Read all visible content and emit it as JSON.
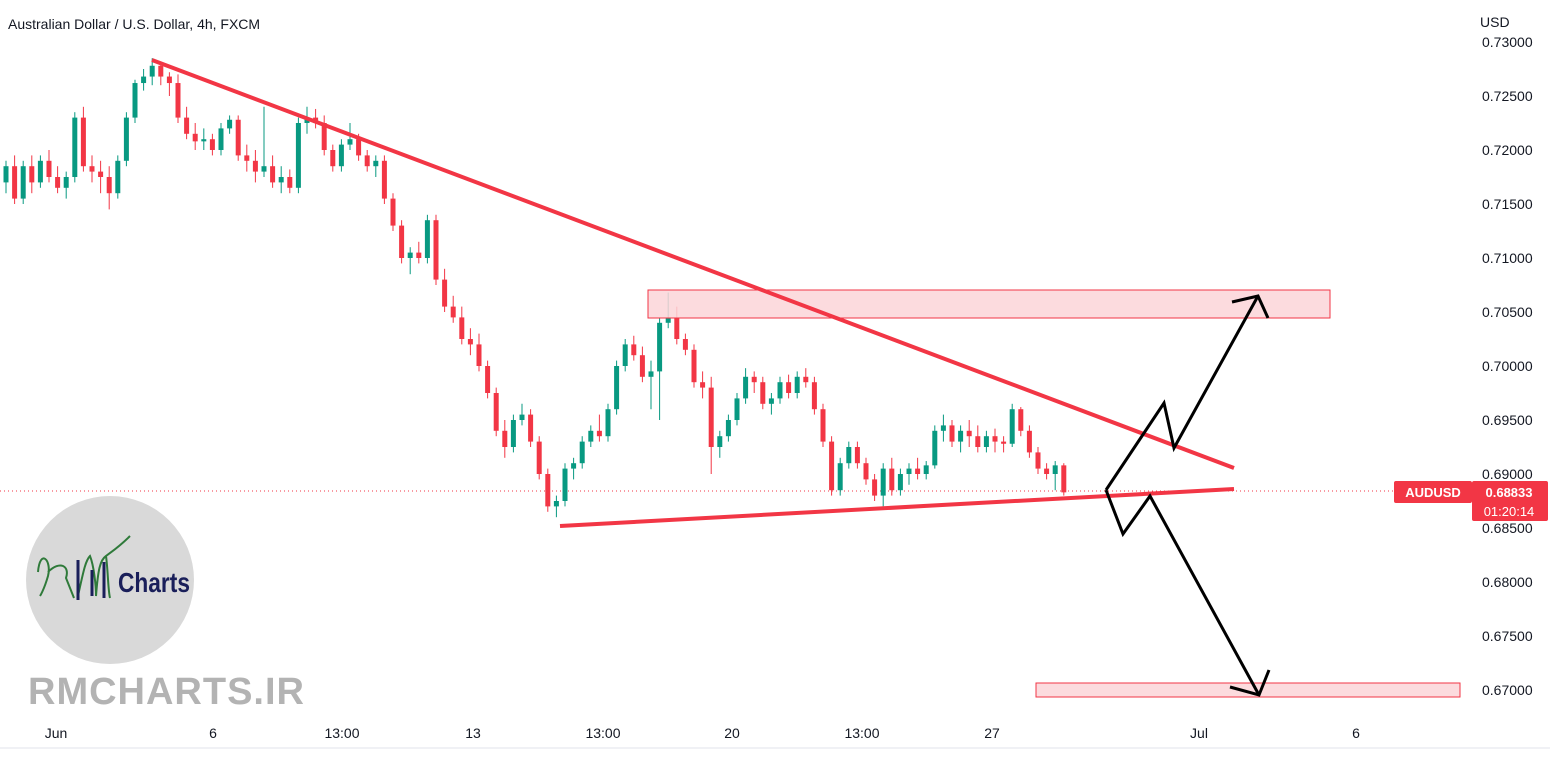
{
  "header": {
    "title": "Australian Dollar / U.S. Dollar, 4h, FXCM"
  },
  "price_axis": {
    "currency": "USD",
    "ticks": [
      "0.73000",
      "0.72500",
      "0.72000",
      "0.71500",
      "0.71000",
      "0.70500",
      "0.70000",
      "0.69500",
      "0.69000",
      "0.68500",
      "0.68000",
      "0.67500",
      "0.67000"
    ]
  },
  "time_axis": {
    "labels": [
      "Jun",
      "6",
      "13:00",
      "13",
      "13:00",
      "20",
      "13:00",
      "27",
      "Jul",
      "6"
    ]
  },
  "price_tag": {
    "symbol": "AUDUSD",
    "price": "0.68833",
    "countdown": "01:20:14",
    "color": "#f23645"
  },
  "watermark": {
    "logo_text": "Charts",
    "site": "RMCHARTS.IR"
  },
  "colors": {
    "up": "#089981",
    "down": "#f23645",
    "trendline": "#f23645",
    "zone_fill": "#fcd5d8",
    "zone_stroke": "#f23645",
    "arrows": "#000000"
  },
  "chart_data": {
    "type": "candlestick",
    "title": "Australian Dollar / U.S. Dollar, 4h, FXCM",
    "symbol": "AUDUSD",
    "timeframe": "4h",
    "ylabel": "USD",
    "ylim": [
      0.6695,
      0.7305
    ],
    "last_price": 0.68833,
    "candles": [
      [
        0.717,
        0.719,
        0.716,
        0.7185
      ],
      [
        0.7185,
        0.7195,
        0.715,
        0.7155
      ],
      [
        0.7155,
        0.719,
        0.715,
        0.7185
      ],
      [
        0.7185,
        0.7195,
        0.716,
        0.717
      ],
      [
        0.717,
        0.7195,
        0.7165,
        0.719
      ],
      [
        0.719,
        0.72,
        0.717,
        0.7175
      ],
      [
        0.7175,
        0.7185,
        0.716,
        0.7165
      ],
      [
        0.7165,
        0.718,
        0.7155,
        0.7175
      ],
      [
        0.7175,
        0.7235,
        0.717,
        0.723
      ],
      [
        0.723,
        0.724,
        0.718,
        0.7185
      ],
      [
        0.7185,
        0.7195,
        0.717,
        0.718
      ],
      [
        0.718,
        0.719,
        0.716,
        0.7175
      ],
      [
        0.7175,
        0.7185,
        0.7145,
        0.716
      ],
      [
        0.716,
        0.7195,
        0.7155,
        0.719
      ],
      [
        0.719,
        0.7235,
        0.7185,
        0.723
      ],
      [
        0.723,
        0.7265,
        0.7225,
        0.7262
      ],
      [
        0.7262,
        0.7275,
        0.7255,
        0.7268
      ],
      [
        0.7268,
        0.7285,
        0.726,
        0.7278
      ],
      [
        0.7278,
        0.7282,
        0.726,
        0.7268
      ],
      [
        0.7268,
        0.7272,
        0.725,
        0.7262
      ],
      [
        0.7262,
        0.727,
        0.7225,
        0.723
      ],
      [
        0.723,
        0.724,
        0.721,
        0.7215
      ],
      [
        0.7215,
        0.7225,
        0.72,
        0.7208
      ],
      [
        0.7208,
        0.722,
        0.72,
        0.721
      ],
      [
        0.721,
        0.7215,
        0.7195,
        0.72
      ],
      [
        0.72,
        0.7225,
        0.7195,
        0.722
      ],
      [
        0.722,
        0.7232,
        0.7215,
        0.7228
      ],
      [
        0.7228,
        0.7232,
        0.719,
        0.7195
      ],
      [
        0.7195,
        0.7205,
        0.718,
        0.719
      ],
      [
        0.719,
        0.72,
        0.717,
        0.718
      ],
      [
        0.718,
        0.724,
        0.7175,
        0.7185
      ],
      [
        0.7185,
        0.7195,
        0.7165,
        0.717
      ],
      [
        0.717,
        0.7185,
        0.716,
        0.7175
      ],
      [
        0.7175,
        0.7182,
        0.716,
        0.7165
      ],
      [
        0.7165,
        0.723,
        0.716,
        0.7225
      ],
      [
        0.7225,
        0.724,
        0.7215,
        0.723
      ],
      [
        0.723,
        0.7238,
        0.722,
        0.7225
      ],
      [
        0.7225,
        0.7232,
        0.7195,
        0.72
      ],
      [
        0.72,
        0.7205,
        0.718,
        0.7185
      ],
      [
        0.7185,
        0.721,
        0.718,
        0.7205
      ],
      [
        0.7205,
        0.7225,
        0.72,
        0.721
      ],
      [
        0.721,
        0.7215,
        0.719,
        0.7195
      ],
      [
        0.7195,
        0.72,
        0.718,
        0.7185
      ],
      [
        0.7185,
        0.7195,
        0.7175,
        0.719
      ],
      [
        0.719,
        0.7195,
        0.715,
        0.7155
      ],
      [
        0.7155,
        0.716,
        0.7125,
        0.713
      ],
      [
        0.713,
        0.7135,
        0.7095,
        0.71
      ],
      [
        0.71,
        0.711,
        0.7085,
        0.7105
      ],
      [
        0.7105,
        0.7115,
        0.7095,
        0.71
      ],
      [
        0.71,
        0.714,
        0.7095,
        0.7135
      ],
      [
        0.7135,
        0.714,
        0.7075,
        0.708
      ],
      [
        0.708,
        0.709,
        0.705,
        0.7055
      ],
      [
        0.7055,
        0.7065,
        0.704,
        0.7045
      ],
      [
        0.7045,
        0.7055,
        0.702,
        0.7025
      ],
      [
        0.7025,
        0.7035,
        0.701,
        0.702
      ],
      [
        0.702,
        0.703,
        0.6995,
        0.7
      ],
      [
        0.7,
        0.7005,
        0.697,
        0.6975
      ],
      [
        0.6975,
        0.698,
        0.6935,
        0.694
      ],
      [
        0.694,
        0.695,
        0.6915,
        0.6925
      ],
      [
        0.6925,
        0.6955,
        0.692,
        0.695
      ],
      [
        0.695,
        0.6965,
        0.6945,
        0.6955
      ],
      [
        0.6955,
        0.696,
        0.6925,
        0.693
      ],
      [
        0.693,
        0.6935,
        0.6895,
        0.69
      ],
      [
        0.69,
        0.6905,
        0.6865,
        0.687
      ],
      [
        0.687,
        0.688,
        0.686,
        0.6875
      ],
      [
        0.6875,
        0.691,
        0.687,
        0.6905
      ],
      [
        0.6905,
        0.6915,
        0.6895,
        0.691
      ],
      [
        0.691,
        0.6935,
        0.6905,
        0.693
      ],
      [
        0.693,
        0.6945,
        0.6925,
        0.694
      ],
      [
        0.694,
        0.6955,
        0.693,
        0.6935
      ],
      [
        0.6935,
        0.6965,
        0.693,
        0.696
      ],
      [
        0.696,
        0.7005,
        0.6955,
        0.7
      ],
      [
        0.7,
        0.7025,
        0.6995,
        0.702
      ],
      [
        0.702,
        0.7028,
        0.7005,
        0.701
      ],
      [
        0.701,
        0.7018,
        0.6985,
        0.699
      ],
      [
        0.699,
        0.7005,
        0.696,
        0.6995
      ],
      [
        0.6995,
        0.7045,
        0.695,
        0.704
      ],
      [
        0.704,
        0.7068,
        0.7035,
        0.7045
      ],
      [
        0.7045,
        0.7055,
        0.702,
        0.7025
      ],
      [
        0.7025,
        0.703,
        0.701,
        0.7015
      ],
      [
        0.7015,
        0.702,
        0.698,
        0.6985
      ],
      [
        0.6985,
        0.6995,
        0.697,
        0.698
      ],
      [
        0.698,
        0.699,
        0.69,
        0.6925
      ],
      [
        0.6925,
        0.694,
        0.6915,
        0.6935
      ],
      [
        0.6935,
        0.6955,
        0.693,
        0.695
      ],
      [
        0.695,
        0.6975,
        0.6945,
        0.697
      ],
      [
        0.697,
        0.6998,
        0.6965,
        0.699
      ],
      [
        0.699,
        0.6995,
        0.6975,
        0.6985
      ],
      [
        0.6985,
        0.699,
        0.696,
        0.6965
      ],
      [
        0.6965,
        0.6975,
        0.6955,
        0.697
      ],
      [
        0.697,
        0.699,
        0.6965,
        0.6985
      ],
      [
        0.6985,
        0.6992,
        0.697,
        0.6975
      ],
      [
        0.6975,
        0.6995,
        0.697,
        0.699
      ],
      [
        0.699,
        0.6998,
        0.698,
        0.6985
      ],
      [
        0.6985,
        0.699,
        0.6955,
        0.696
      ],
      [
        0.696,
        0.6965,
        0.6925,
        0.693
      ],
      [
        0.693,
        0.6935,
        0.688,
        0.6885
      ],
      [
        0.6885,
        0.6915,
        0.688,
        0.691
      ],
      [
        0.691,
        0.693,
        0.6905,
        0.6925
      ],
      [
        0.6925,
        0.693,
        0.6905,
        0.691
      ],
      [
        0.691,
        0.6915,
        0.689,
        0.6895
      ],
      [
        0.6895,
        0.69,
        0.6875,
        0.688
      ],
      [
        0.688,
        0.691,
        0.687,
        0.6905
      ],
      [
        0.6905,
        0.6915,
        0.688,
        0.6885
      ],
      [
        0.6885,
        0.6905,
        0.688,
        0.69
      ],
      [
        0.69,
        0.691,
        0.689,
        0.6905
      ],
      [
        0.6905,
        0.6915,
        0.6895,
        0.69
      ],
      [
        0.69,
        0.6912,
        0.6895,
        0.6908
      ],
      [
        0.6908,
        0.6945,
        0.6905,
        0.694
      ],
      [
        0.694,
        0.6955,
        0.693,
        0.6945
      ],
      [
        0.6945,
        0.695,
        0.6925,
        0.693
      ],
      [
        0.693,
        0.6945,
        0.692,
        0.694
      ],
      [
        0.694,
        0.695,
        0.6925,
        0.6935
      ],
      [
        0.6935,
        0.6945,
        0.692,
        0.6925
      ],
      [
        0.6925,
        0.694,
        0.692,
        0.6935
      ],
      [
        0.6935,
        0.6942,
        0.692,
        0.693
      ],
      [
        0.693,
        0.6935,
        0.692,
        0.6928
      ],
      [
        0.6928,
        0.6965,
        0.6925,
        0.696
      ],
      [
        0.696,
        0.6962,
        0.6935,
        0.694
      ],
      [
        0.694,
        0.6945,
        0.6915,
        0.692
      ],
      [
        0.692,
        0.6925,
        0.69,
        0.6905
      ],
      [
        0.6905,
        0.691,
        0.6895,
        0.69
      ],
      [
        0.69,
        0.6912,
        0.6885,
        0.6908
      ],
      [
        0.6908,
        0.691,
        0.688,
        0.6883
      ]
    ],
    "annotations": [
      {
        "kind": "trendline",
        "role": "descending resistance"
      },
      {
        "kind": "trendline",
        "role": "rising support"
      },
      {
        "kind": "zone",
        "y": [
          0.7043,
          0.707
        ]
      },
      {
        "kind": "zone",
        "y": [
          0.6692,
          0.6705
        ]
      },
      {
        "kind": "arrow",
        "direction": "up",
        "target": 0.7068
      },
      {
        "kind": "arrow",
        "direction": "down",
        "target": 0.6694
      }
    ]
  }
}
